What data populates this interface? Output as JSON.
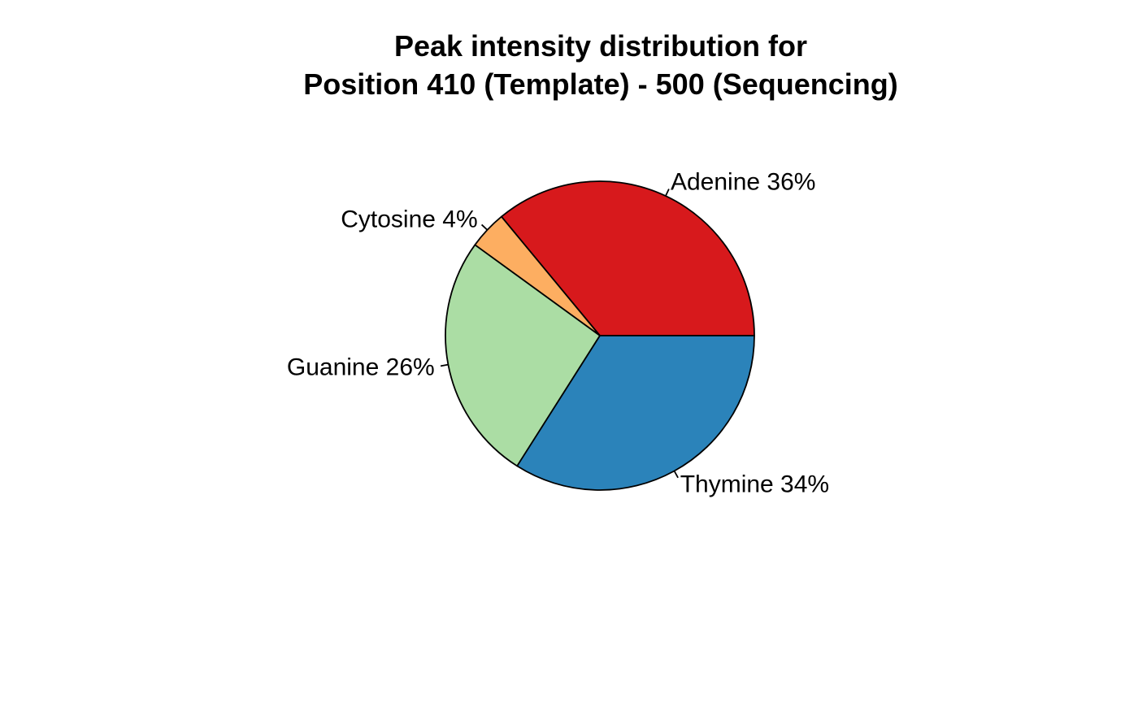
{
  "chart_data": {
    "type": "pie",
    "title": [
      "Peak intensity distribution for",
      "Position 410 (Template) - 500 (Sequencing)"
    ],
    "direction": "counterclockwise",
    "start": "3 o'clock",
    "slices": [
      {
        "label": "Adenine 36%",
        "value": 36,
        "color": "#D7191C"
      },
      {
        "label": "Cytosine 4%",
        "value": 4,
        "color": "#FDAE61"
      },
      {
        "label": "Guanine 26%",
        "value": 26,
        "color": "#ABDDA4"
      },
      {
        "label": "Thymine 34%",
        "value": 34,
        "color": "#2B83BA"
      }
    ]
  }
}
